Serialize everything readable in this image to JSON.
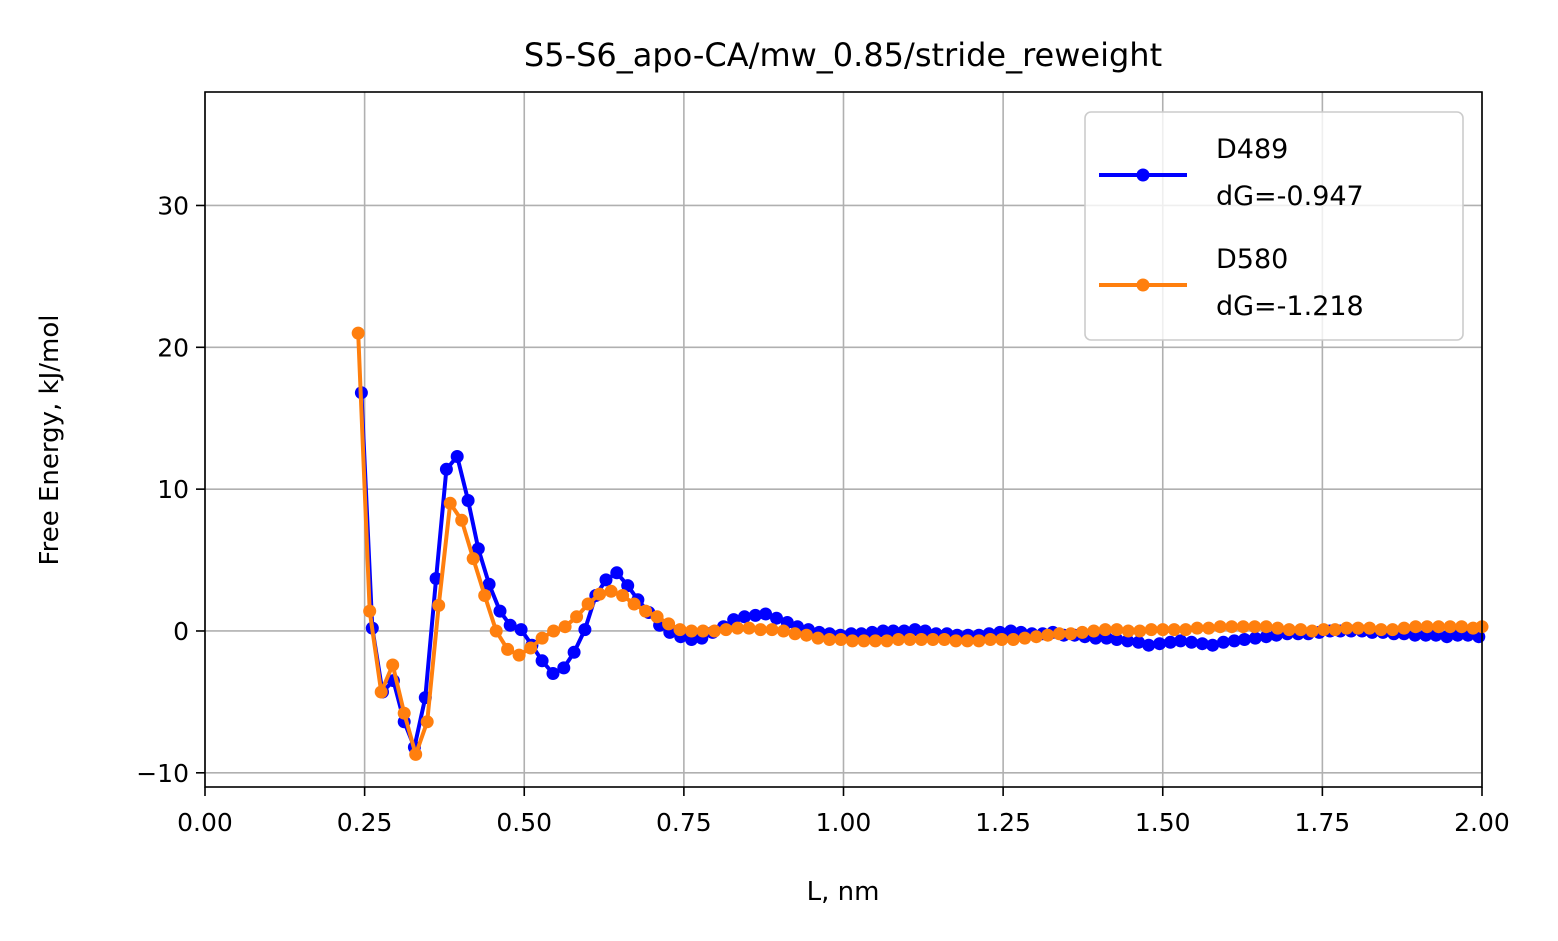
{
  "chart_data": {
    "type": "line",
    "title": "S5-S6_apo-CA/mw_0.85/stride_reweight",
    "xlabel": "L, nm",
    "ylabel": "Free Energy, kJ/mol",
    "xlim": [
      0.0,
      2.0
    ],
    "ylim": [
      -11,
      38
    ],
    "xticks": [
      0.0,
      0.25,
      0.5,
      0.75,
      1.0,
      1.25,
      1.5,
      1.75,
      2.0
    ],
    "xtick_labels": [
      "0.00",
      "0.25",
      "0.50",
      "0.75",
      "1.00",
      "1.25",
      "1.50",
      "1.75",
      "2.00"
    ],
    "yticks": [
      -10,
      0,
      10,
      20,
      30
    ],
    "ytick_labels": [
      "−10",
      "0",
      "10",
      "20",
      "30"
    ],
    "grid": true,
    "legend_position": "top-right",
    "series": [
      {
        "name": "D489",
        "label_lines": [
          "D489",
          "dG=-0.947"
        ],
        "color": "#0000ff",
        "x": [
          0.245,
          0.262,
          0.278,
          0.295,
          0.312,
          0.328,
          0.345,
          0.362,
          0.378,
          0.395,
          0.412,
          0.428,
          0.445,
          0.462,
          0.478,
          0.495,
          0.512,
          0.528,
          0.545,
          0.562,
          0.578,
          0.595,
          0.612,
          0.628,
          0.645,
          0.662,
          0.678,
          0.695,
          0.712,
          0.728,
          0.745,
          0.762,
          0.778,
          0.795,
          0.812,
          0.828,
          0.845,
          0.862,
          0.878,
          0.895,
          0.912,
          0.928,
          0.945,
          0.962,
          0.978,
          0.995,
          1.012,
          1.028,
          1.045,
          1.062,
          1.078,
          1.095,
          1.112,
          1.128,
          1.145,
          1.162,
          1.178,
          1.195,
          1.212,
          1.228,
          1.245,
          1.262,
          1.278,
          1.295,
          1.312,
          1.328,
          1.345,
          1.362,
          1.378,
          1.395,
          1.412,
          1.428,
          1.445,
          1.462,
          1.478,
          1.495,
          1.512,
          1.528,
          1.545,
          1.562,
          1.578,
          1.595,
          1.612,
          1.628,
          1.645,
          1.662,
          1.678,
          1.695,
          1.712,
          1.728,
          1.745,
          1.762,
          1.778,
          1.795,
          1.812,
          1.828,
          1.845,
          1.862,
          1.878,
          1.895,
          1.912,
          1.928,
          1.945,
          1.962,
          1.978,
          1.995
        ],
        "y": [
          16.8,
          0.2,
          -4.3,
          -3.5,
          -6.4,
          -8.2,
          -4.7,
          3.7,
          11.4,
          12.3,
          9.2,
          5.8,
          3.3,
          1.4,
          0.4,
          0.1,
          -1.0,
          -2.1,
          -3.0,
          -2.6,
          -1.5,
          0.1,
          2.5,
          3.6,
          4.1,
          3.2,
          2.2,
          1.3,
          0.4,
          -0.1,
          -0.4,
          -0.6,
          -0.5,
          -0.1,
          0.3,
          0.8,
          1.0,
          1.1,
          1.2,
          0.9,
          0.6,
          0.3,
          0.1,
          -0.1,
          -0.2,
          -0.3,
          -0.2,
          -0.2,
          -0.1,
          0.0,
          0.0,
          0.0,
          0.1,
          0.0,
          -0.2,
          -0.2,
          -0.3,
          -0.3,
          -0.3,
          -0.2,
          -0.1,
          0.0,
          -0.1,
          -0.2,
          -0.2,
          -0.1,
          -0.3,
          -0.3,
          -0.4,
          -0.5,
          -0.5,
          -0.6,
          -0.7,
          -0.8,
          -1.0,
          -0.9,
          -0.8,
          -0.7,
          -0.8,
          -0.9,
          -1.0,
          -0.8,
          -0.7,
          -0.6,
          -0.5,
          -0.4,
          -0.3,
          -0.2,
          -0.2,
          -0.2,
          -0.1,
          0.0,
          0.0,
          0.0,
          0.0,
          -0.1,
          -0.1,
          -0.2,
          -0.2,
          -0.3,
          -0.3,
          -0.3,
          -0.4,
          -0.3,
          -0.3,
          -0.4
        ]
      },
      {
        "name": "D580",
        "label_lines": [
          "D580",
          "dG=-1.218"
        ],
        "color": "#ff7f0e",
        "x": [
          0.24,
          0.258,
          0.276,
          0.294,
          0.312,
          0.33,
          0.348,
          0.366,
          0.384,
          0.402,
          0.42,
          0.438,
          0.456,
          0.474,
          0.492,
          0.51,
          0.528,
          0.546,
          0.564,
          0.582,
          0.6,
          0.618,
          0.636,
          0.654,
          0.672,
          0.69,
          0.708,
          0.726,
          0.744,
          0.762,
          0.78,
          0.798,
          0.816,
          0.834,
          0.852,
          0.87,
          0.888,
          0.906,
          0.924,
          0.942,
          0.96,
          0.978,
          0.996,
          1.014,
          1.032,
          1.05,
          1.068,
          1.086,
          1.104,
          1.122,
          1.14,
          1.158,
          1.176,
          1.194,
          1.212,
          1.23,
          1.248,
          1.266,
          1.284,
          1.302,
          1.32,
          1.338,
          1.356,
          1.374,
          1.392,
          1.41,
          1.428,
          1.446,
          1.464,
          1.482,
          1.5,
          1.518,
          1.536,
          1.554,
          1.572,
          1.59,
          1.608,
          1.626,
          1.644,
          1.662,
          1.68,
          1.698,
          1.716,
          1.734,
          1.752,
          1.77,
          1.788,
          1.806,
          1.824,
          1.842,
          1.86,
          1.878,
          1.896,
          1.914,
          1.932,
          1.95,
          1.968,
          1.986,
          2.0
        ],
        "y": [
          21.0,
          1.4,
          -4.3,
          -2.4,
          -5.8,
          -8.7,
          -6.4,
          1.8,
          9.0,
          7.8,
          5.1,
          2.5,
          0.0,
          -1.3,
          -1.7,
          -1.2,
          -0.5,
          0.0,
          0.3,
          1.0,
          1.9,
          2.6,
          2.8,
          2.5,
          1.9,
          1.4,
          1.0,
          0.5,
          0.1,
          0.0,
          0.0,
          0.0,
          0.1,
          0.2,
          0.2,
          0.1,
          0.1,
          0.0,
          -0.2,
          -0.3,
          -0.5,
          -0.6,
          -0.6,
          -0.7,
          -0.7,
          -0.7,
          -0.7,
          -0.6,
          -0.6,
          -0.6,
          -0.6,
          -0.6,
          -0.7,
          -0.7,
          -0.7,
          -0.6,
          -0.6,
          -0.6,
          -0.5,
          -0.4,
          -0.3,
          -0.2,
          -0.2,
          -0.1,
          0.0,
          0.1,
          0.1,
          0.0,
          0.0,
          0.1,
          0.1,
          0.1,
          0.1,
          0.2,
          0.2,
          0.3,
          0.3,
          0.3,
          0.3,
          0.3,
          0.2,
          0.1,
          0.1,
          0.0,
          0.1,
          0.1,
          0.2,
          0.2,
          0.2,
          0.1,
          0.1,
          0.2,
          0.3,
          0.3,
          0.3,
          0.3,
          0.3,
          0.2,
          0.3
        ]
      }
    ]
  }
}
